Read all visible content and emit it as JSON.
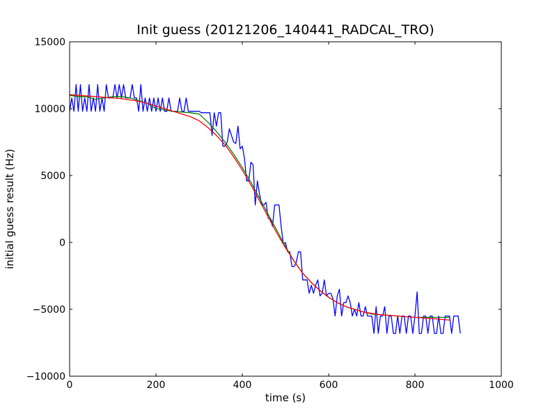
{
  "chart_data": {
    "type": "line",
    "title": "Init guess (20121206_140441_RADCAL_TRO)",
    "xlabel": "time (s)",
    "ylabel": "initial guess result (Hz)",
    "xlim": [
      0,
      1000
    ],
    "ylim": [
      -10000,
      15000
    ],
    "xticks": [
      0,
      200,
      400,
      600,
      800,
      1000
    ],
    "yticks": [
      -10000,
      -5000,
      0,
      5000,
      10000,
      15000
    ],
    "grid": false,
    "series": [
      {
        "color": "#0000ff",
        "x": [
          0,
          5,
          10,
          15,
          20,
          25,
          30,
          35,
          40,
          45,
          50,
          55,
          60,
          65,
          70,
          75,
          80,
          85,
          90,
          95,
          100,
          105,
          110,
          115,
          120,
          125,
          130,
          135,
          140,
          145,
          150,
          155,
          160,
          165,
          170,
          175,
          180,
          185,
          190,
          195,
          200,
          205,
          210,
          215,
          220,
          225,
          230,
          235,
          240,
          245,
          250,
          255,
          260,
          265,
          270,
          275,
          280,
          285,
          290,
          295,
          300,
          305,
          310,
          315,
          320,
          325,
          330,
          335,
          340,
          345,
          350,
          355,
          360,
          365,
          370,
          375,
          380,
          385,
          390,
          395,
          400,
          405,
          410,
          415,
          420,
          425,
          430,
          435,
          440,
          445,
          450,
          455,
          460,
          465,
          470,
          475,
          480,
          485,
          490,
          495,
          500,
          505,
          510,
          515,
          520,
          525,
          530,
          535,
          540,
          545,
          550,
          555,
          560,
          565,
          570,
          575,
          580,
          585,
          590,
          595,
          600,
          605,
          610,
          615,
          620,
          625,
          630,
          635,
          640,
          645,
          650,
          655,
          660,
          665,
          670,
          675,
          680,
          685,
          690,
          695,
          700,
          705,
          710,
          715,
          720,
          725,
          730,
          735,
          740,
          745,
          750,
          755,
          760,
          765,
          770,
          775,
          780,
          785,
          790,
          795,
          800,
          805,
          810,
          815,
          820,
          825,
          830,
          835,
          840,
          845,
          850,
          855,
          860,
          865,
          870,
          875,
          880,
          885,
          890,
          895,
          900,
          905
        ],
        "y": [
          9800,
          10800,
          9800,
          11800,
          9800,
          11800,
          9800,
          10800,
          9800,
          11800,
          9800,
          10800,
          9800,
          11800,
          9800,
          10800,
          9800,
          11800,
          10800,
          10800,
          10800,
          11800,
          10800,
          11800,
          10800,
          11800,
          10800,
          10800,
          10800,
          11800,
          10800,
          10800,
          9800,
          11800,
          9800,
          10800,
          9800,
          10800,
          9800,
          10800,
          9800,
          10800,
          9800,
          10800,
          9800,
          9800,
          10800,
          9800,
          9800,
          9800,
          9800,
          10800,
          9800,
          9800,
          10800,
          9800,
          9800,
          9800,
          9800,
          9800,
          9800,
          9700,
          9700,
          9700,
          9700,
          9700,
          8000,
          9700,
          8700,
          9700,
          9700,
          7200,
          7200,
          7500,
          8500,
          8000,
          7500,
          7400,
          8700,
          7000,
          7200,
          6300,
          4600,
          4600,
          6000,
          5800,
          2800,
          4600,
          3600,
          2800,
          2800,
          3000,
          1800,
          1800,
          1200,
          2800,
          2800,
          2800,
          1200,
          -100,
          0,
          -700,
          -700,
          -1800,
          -1800,
          -1500,
          -700,
          -700,
          -2800,
          -2800,
          -2800,
          -3800,
          -3200,
          -3800,
          -3200,
          -2800,
          -4000,
          -3800,
          -2800,
          -4000,
          -3800,
          -3800,
          -4200,
          -5500,
          -4000,
          -3500,
          -5500,
          -4500,
          -4500,
          -4000,
          -4500,
          -5500,
          -5000,
          -5500,
          -4500,
          -5500,
          -5500,
          -4800,
          -5500,
          -5500,
          -5500,
          -6800,
          -4800,
          -6800,
          -5500,
          -5500,
          -4800,
          -6800,
          -5500,
          -5500,
          -6800,
          -6800,
          -5500,
          -6800,
          -5500,
          -5500,
          -6800,
          -5500,
          -5500,
          -6800,
          -5500,
          -3700,
          -6800,
          -6800,
          -5500,
          -5500,
          -6800,
          -5500,
          -5500,
          -6800,
          -6800,
          -5500,
          -6800,
          -6800,
          -5500,
          -5500,
          -5500,
          -6800,
          -5500,
          -5500,
          -5500,
          -6800
        ]
      },
      {
        "color": "#008000",
        "x": [
          0,
          20,
          40,
          60,
          80,
          100,
          120,
          140,
          160,
          180,
          200,
          220,
          240,
          260,
          280,
          300,
          320,
          340,
          360,
          380,
          400,
          420,
          440,
          460,
          480,
          500,
          520,
          540,
          560,
          580,
          600,
          620,
          640,
          660,
          680,
          700,
          720,
          740,
          760,
          780,
          800,
          820,
          840,
          860,
          880
        ],
        "y": [
          11000,
          10900,
          10900,
          10700,
          10800,
          10900,
          10900,
          10800,
          10600,
          10400,
          10000,
          9900,
          9800,
          9750,
          9700,
          9600,
          9000,
          8300,
          7500,
          6600,
          5600,
          4500,
          3300,
          2100,
          900,
          -300,
          -1400,
          -2300,
          -3000,
          -3600,
          -4100,
          -4500,
          -4800,
          -5000,
          -5200,
          -5350,
          -5400,
          -5450,
          -5500,
          -5550,
          -5600,
          -5600,
          -5600,
          -5600,
          -5600
        ]
      },
      {
        "color": "#ff0000",
        "x": [
          0,
          20,
          40,
          60,
          80,
          100,
          120,
          140,
          160,
          180,
          200,
          220,
          240,
          260,
          280,
          300,
          320,
          340,
          360,
          380,
          400,
          420,
          440,
          460,
          480,
          500,
          520,
          540,
          560,
          580,
          600,
          620,
          640,
          660,
          680,
          700,
          720,
          740,
          760,
          780,
          800,
          820,
          840,
          860,
          880
        ],
        "y": [
          11050,
          11000,
          10950,
          10900,
          10850,
          10800,
          10750,
          10650,
          10550,
          10400,
          10200,
          10000,
          9800,
          9600,
          9400,
          9100,
          8600,
          8000,
          7300,
          6400,
          5400,
          4300,
          3100,
          1900,
          700,
          -400,
          -1400,
          -2300,
          -3000,
          -3600,
          -4100,
          -4500,
          -4800,
          -5000,
          -5200,
          -5300,
          -5400,
          -5450,
          -5500,
          -5550,
          -5600,
          -5650,
          -5700,
          -5750,
          -5800
        ]
      }
    ]
  }
}
